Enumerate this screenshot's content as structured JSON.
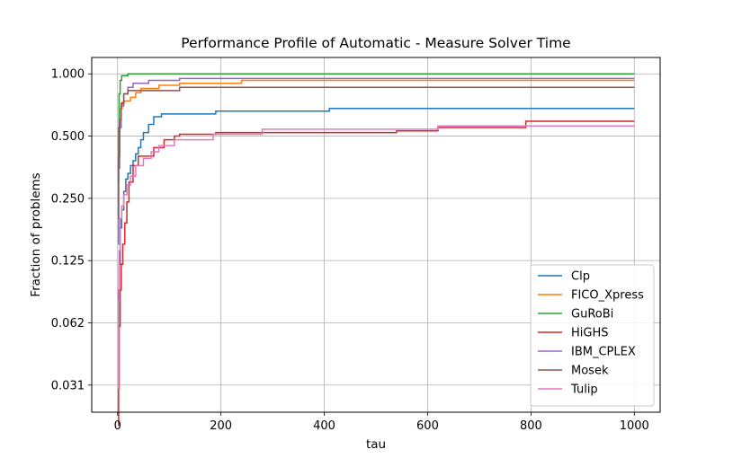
{
  "chart_data": {
    "type": "line",
    "step": true,
    "title": "Performance Profile of Automatic - Measure Solver Time",
    "xlabel": "tau",
    "ylabel": "Fraction of problems",
    "xlim": [
      -50,
      1050
    ],
    "ylim": [
      0.0231,
      1.2
    ],
    "yscale": "log2",
    "xticks": [
      0,
      200,
      400,
      600,
      800,
      1000
    ],
    "xtick_labels": [
      "0",
      "200",
      "400",
      "600",
      "800",
      "1000"
    ],
    "yticks": [
      0.03125,
      0.0625,
      0.125,
      0.25,
      0.5,
      1.0
    ],
    "ytick_labels": [
      "0.031",
      "0.062",
      "0.125",
      "0.250",
      "0.500",
      "1.000"
    ],
    "grid": true,
    "legend_position": "lower-right",
    "series": [
      {
        "name": "Clp",
        "color": "#1f77b4",
        "x": [
          1,
          2,
          3,
          5,
          8,
          12,
          16,
          20,
          25,
          30,
          35,
          40,
          45,
          50,
          60,
          70,
          85,
          190,
          410,
          1000
        ],
        "y": [
          0.06,
          0.09,
          0.12,
          0.18,
          0.22,
          0.27,
          0.31,
          0.33,
          0.36,
          0.38,
          0.41,
          0.44,
          0.48,
          0.52,
          0.57,
          0.62,
          0.64,
          0.66,
          0.68,
          0.68
        ]
      },
      {
        "name": "FICO_Xpress",
        "color": "#ff7f0e",
        "x": [
          1,
          2,
          4,
          6,
          9,
          13,
          25,
          35,
          45,
          80,
          120,
          240,
          1000
        ],
        "y": [
          0.35,
          0.5,
          0.6,
          0.68,
          0.73,
          0.74,
          0.77,
          0.81,
          0.85,
          0.88,
          0.9,
          0.93,
          0.93
        ]
      },
      {
        "name": "GuRoBi",
        "color": "#2ca02c",
        "x": [
          1,
          2,
          3,
          5,
          8,
          20,
          1000
        ],
        "y": [
          0.3,
          0.55,
          0.8,
          0.93,
          0.98,
          1.0,
          1.0
        ]
      },
      {
        "name": "HiGHS",
        "color": "#d62728",
        "x": [
          1,
          2,
          3,
          5,
          7,
          10,
          14,
          18,
          22,
          30,
          40,
          70,
          90,
          110,
          120,
          190,
          540,
          620,
          790,
          1000
        ],
        "y": [
          0.02,
          0.03,
          0.06,
          0.09,
          0.12,
          0.15,
          0.19,
          0.24,
          0.3,
          0.36,
          0.4,
          0.44,
          0.48,
          0.5,
          0.51,
          0.52,
          0.53,
          0.55,
          0.59,
          0.59
        ]
      },
      {
        "name": "IBM_CPLEX",
        "color": "#9467bd",
        "x": [
          1,
          2,
          4,
          7,
          12,
          20,
          30,
          60,
          120,
          1000
        ],
        "y": [
          0.15,
          0.35,
          0.55,
          0.7,
          0.8,
          0.86,
          0.9,
          0.93,
          0.95,
          0.95
        ]
      },
      {
        "name": "Mosek",
        "color": "#8c564b",
        "x": [
          1,
          2,
          4,
          7,
          12,
          20,
          120,
          1000
        ],
        "y": [
          0.2,
          0.4,
          0.6,
          0.72,
          0.8,
          0.83,
          0.86,
          0.86
        ]
      },
      {
        "name": "Tulip",
        "color": "#e377c2",
        "x": [
          1,
          2,
          3,
          5,
          8,
          12,
          18,
          25,
          35,
          50,
          65,
          80,
          110,
          185,
          280,
          620,
          1000
        ],
        "y": [
          0.03,
          0.08,
          0.14,
          0.2,
          0.23,
          0.26,
          0.29,
          0.32,
          0.36,
          0.39,
          0.42,
          0.45,
          0.48,
          0.51,
          0.54,
          0.56,
          0.56
        ]
      }
    ]
  }
}
